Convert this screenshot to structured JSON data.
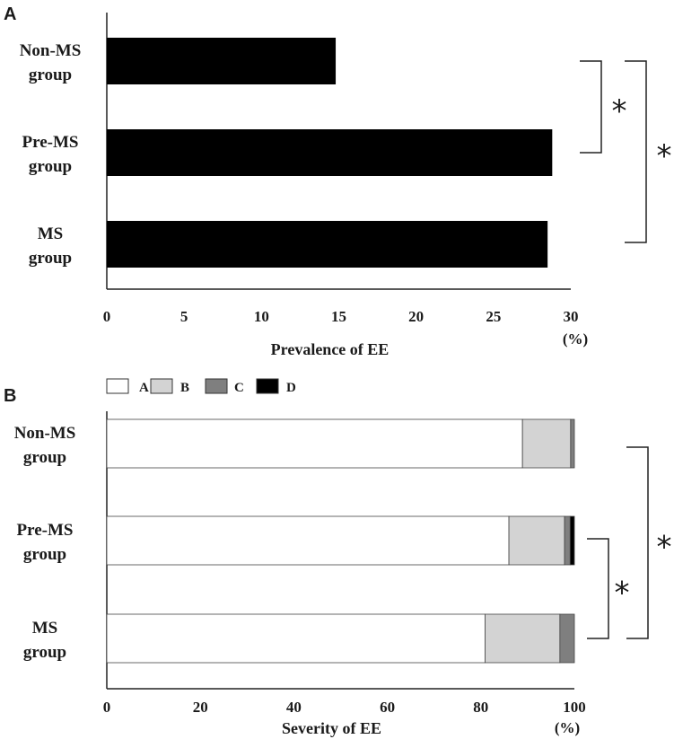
{
  "chart_data": [
    {
      "panel": "A",
      "type": "bar",
      "orientation": "horizontal",
      "categories": [
        [
          "Non-MS",
          "group"
        ],
        [
          "Pre-MS",
          "group"
        ],
        [
          "MS",
          "group"
        ]
      ],
      "values": [
        14.8,
        28.8,
        28.5
      ],
      "xlabel": "Prevalence of EE",
      "unit": "(%)",
      "xlim": [
        0,
        30
      ],
      "ticks": [
        0,
        5,
        10,
        15,
        20,
        25,
        30
      ],
      "grid": false,
      "bar_color": "#000000",
      "significance": [
        {
          "from": 0,
          "to": 1,
          "label": "*"
        },
        {
          "from": 0,
          "to": 2,
          "label": "*"
        }
      ]
    },
    {
      "panel": "B",
      "type": "bar",
      "orientation": "horizontal",
      "stacked": true,
      "categories": [
        [
          "Non-MS",
          "group"
        ],
        [
          "Pre-MS",
          "group"
        ],
        [
          "MS",
          "group"
        ]
      ],
      "series": [
        {
          "name": "A",
          "color": "#ffffff",
          "values": [
            88.9,
            86.0,
            80.9
          ]
        },
        {
          "name": "B",
          "color": "#d3d3d3",
          "values": [
            10.3,
            11.9,
            16.0
          ]
        },
        {
          "name": "C",
          "color": "#7f7f7f",
          "values": [
            0.8,
            1.2,
            3.1
          ]
        },
        {
          "name": "D",
          "color": "#000000",
          "values": [
            0.0,
            0.9,
            0.0
          ]
        }
      ],
      "xlabel": "Severity of EE",
      "unit": "(%)",
      "xlim": [
        0,
        100
      ],
      "ticks": [
        0,
        20,
        40,
        60,
        80,
        100
      ],
      "grid": false,
      "legend_position": "top-left",
      "significance": [
        {
          "from": 1,
          "to": 2,
          "label": "*"
        },
        {
          "from": 0,
          "to": 2,
          "label": "*"
        }
      ]
    }
  ]
}
